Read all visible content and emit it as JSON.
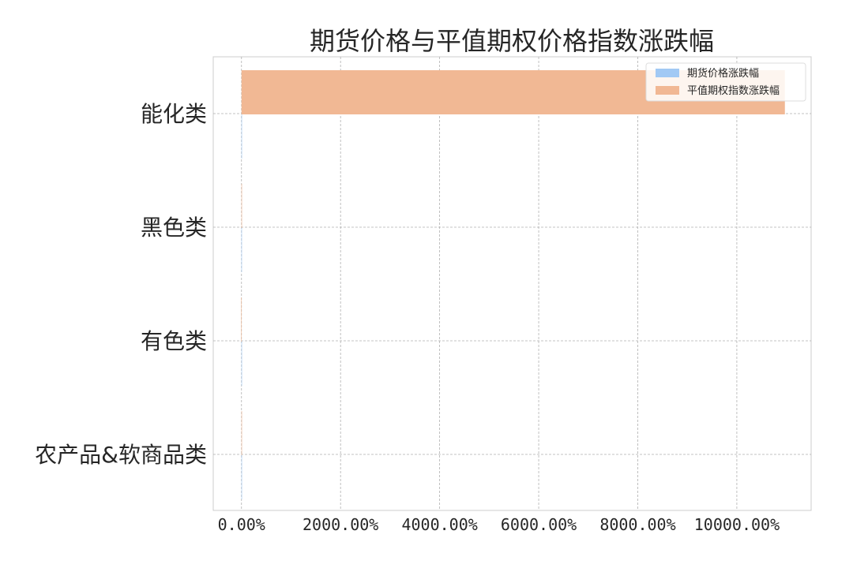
{
  "chart_data": {
    "type": "bar",
    "orientation": "horizontal",
    "title": "期货价格与平值期权价格指数涨跌幅",
    "xlabel": "",
    "ylabel": "",
    "categories": [
      "能化类",
      "黑色类",
      "有色类",
      "农产品&软商品类"
    ],
    "series": [
      {
        "name": "期货价格涨跌幅",
        "color": "#a1c9f4",
        "values": [
          4.5,
          -1.2,
          2.1,
          0.8
        ]
      },
      {
        "name": "平值期权指数涨跌幅",
        "color": "#f1b894",
        "values": [
          10970,
          3.5,
          -8,
          1.5
        ]
      }
    ],
    "x_ticks": [
      0,
      2000,
      4000,
      6000,
      8000,
      10000
    ],
    "x_tick_labels": [
      "0.00%",
      "2000.00%",
      "4000.00%",
      "6000.00%",
      "8000.00%",
      "10000.00%"
    ],
    "xlim": [
      -570,
      11500
    ],
    "grid": true,
    "legend_position": "top-right"
  }
}
